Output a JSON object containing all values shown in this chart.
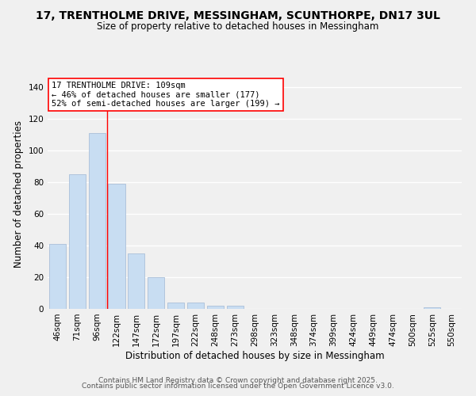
{
  "title": "17, TRENTHOLME DRIVE, MESSINGHAM, SCUNTHORPE, DN17 3UL",
  "subtitle": "Size of property relative to detached houses in Messingham",
  "xlabel": "Distribution of detached houses by size in Messingham",
  "ylabel": "Number of detached properties",
  "bar_labels": [
    "46sqm",
    "71sqm",
    "96sqm",
    "122sqm",
    "147sqm",
    "172sqm",
    "197sqm",
    "222sqm",
    "248sqm",
    "273sqm",
    "298sqm",
    "323sqm",
    "348sqm",
    "374sqm",
    "399sqm",
    "424sqm",
    "449sqm",
    "474sqm",
    "500sqm",
    "525sqm",
    "550sqm"
  ],
  "bar_values": [
    41,
    85,
    111,
    79,
    35,
    20,
    4,
    4,
    2,
    2,
    0,
    0,
    0,
    0,
    0,
    0,
    0,
    0,
    0,
    1,
    0
  ],
  "bar_color": "#c8ddf2",
  "bar_edge_color": "#aabfd8",
  "ylim": [
    0,
    145
  ],
  "yticks": [
    0,
    20,
    40,
    60,
    80,
    100,
    120,
    140
  ],
  "property_label": "17 TRENTHOLME DRIVE: 109sqm",
  "annotation_line1": "← 46% of detached houses are smaller (177)",
  "annotation_line2": "52% of semi-detached houses are larger (199) →",
  "vline_x_index": 2.5,
  "footer_line1": "Contains HM Land Registry data © Crown copyright and database right 2025.",
  "footer_line2": "Contains public sector information licensed under the Open Government Licence v3.0.",
  "background_color": "#f0f0f0",
  "grid_color": "#ffffff",
  "title_fontsize": 10,
  "subtitle_fontsize": 8.5,
  "axis_label_fontsize": 8.5,
  "tick_fontsize": 7.5,
  "annotation_fontsize": 7.5,
  "footer_fontsize": 6.5
}
